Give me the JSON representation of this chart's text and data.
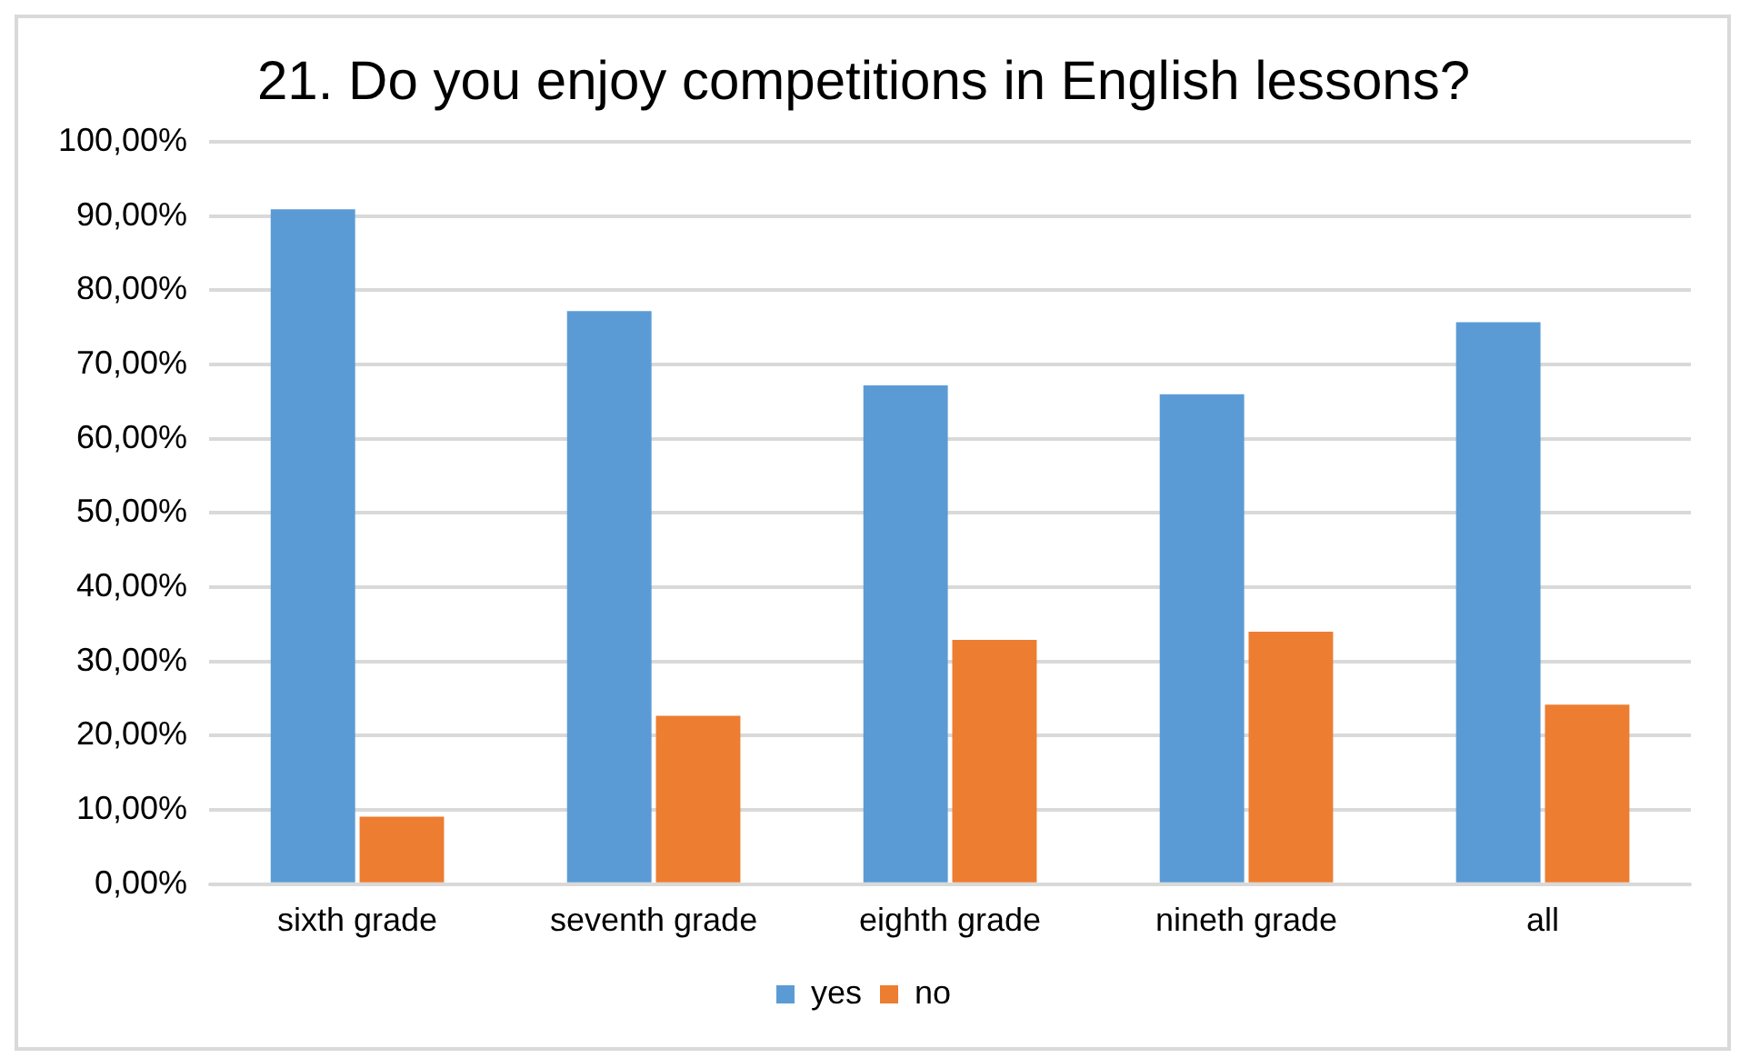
{
  "chart_data": {
    "type": "bar",
    "title": "21. Do you enjoy competitions in English lessons?",
    "categories": [
      "sixth grade",
      "seventh grade",
      "eighth grade",
      "nineth grade",
      "all"
    ],
    "series": [
      {
        "name": "yes",
        "color": "#5b9bd5",
        "values": [
          90.9,
          77.2,
          67.2,
          66.0,
          75.7
        ]
      },
      {
        "name": "no",
        "color": "#ed7d31",
        "values": [
          9.1,
          22.7,
          32.9,
          34.0,
          24.2
        ]
      }
    ],
    "ylim": [
      0,
      100
    ],
    "yticks": [
      {
        "value": 0,
        "label": "0,00%"
      },
      {
        "value": 10,
        "label": "10,00%"
      },
      {
        "value": 20,
        "label": "20,00%"
      },
      {
        "value": 30,
        "label": "30,00%"
      },
      {
        "value": 40,
        "label": "40,00%"
      },
      {
        "value": 50,
        "label": "50,00%"
      },
      {
        "value": 60,
        "label": "60,00%"
      },
      {
        "value": 70,
        "label": "70,00%"
      },
      {
        "value": 80,
        "label": "80,00%"
      },
      {
        "value": 90,
        "label": "90,00%"
      },
      {
        "value": 100,
        "label": "100,00%"
      }
    ],
    "grid": "y",
    "legend": "bottom"
  }
}
